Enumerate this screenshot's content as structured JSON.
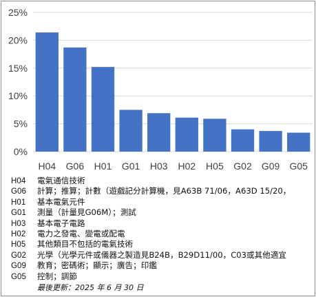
{
  "chart_data": {
    "type": "bar",
    "categories": [
      "H04",
      "G06",
      "H01",
      "G01",
      "H03",
      "H02",
      "H05",
      "G02",
      "G09",
      "G05"
    ],
    "values": [
      21.4,
      18.7,
      15.2,
      7.5,
      6.9,
      6.1,
      5.9,
      4.0,
      3.7,
      3.4
    ],
    "ylim": [
      0,
      25
    ],
    "yticks": [
      0,
      5,
      10,
      15,
      20,
      25
    ],
    "ytick_labels": [
      "0%",
      "5%",
      "10%",
      "15%",
      "20%",
      "25%"
    ],
    "title": "",
    "xlabel": "",
    "ylabel": "",
    "grid": true,
    "bar_color": "#4472c4",
    "grid_color": "#d9d9d9"
  },
  "legend": [
    {
      "code": "H04",
      "desc": "電氣通信技術"
    },
    {
      "code": "G06",
      "desc": "計算；推算；計數（遊戲記分計算機，見A63B 71/06，A63D 15/20，"
    },
    {
      "code": "H01",
      "desc": "基本電氣元件"
    },
    {
      "code": "G01",
      "desc": "測量（計量見G06M）；測試"
    },
    {
      "code": "H03",
      "desc": "基本電子電路"
    },
    {
      "code": "H02",
      "desc": "電力之發電、變電或配電"
    },
    {
      "code": "H05",
      "desc": "其他類目不包括的電氣技術"
    },
    {
      "code": "G02",
      "desc": "光學（光學元件或儀器之製造見B24B，B29D11/00，C03或其他適宜"
    },
    {
      "code": "G09",
      "desc": "教育；密碼術；顯示；廣告；印鑑"
    },
    {
      "code": "G05",
      "desc": "控制；調節"
    }
  ],
  "updated": "最後更新：2025 年 6 月 30 日"
}
